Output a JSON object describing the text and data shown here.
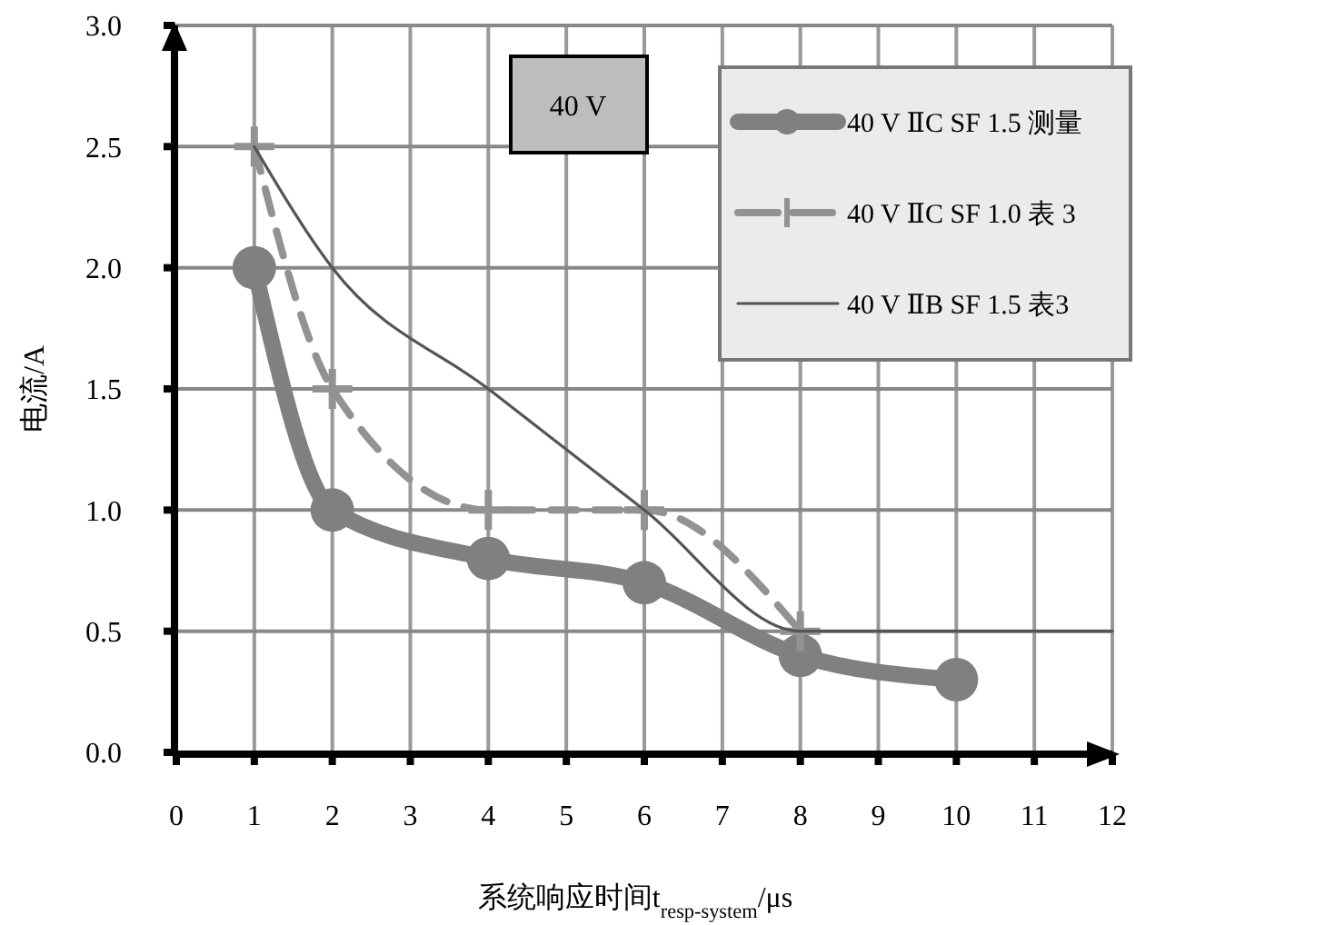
{
  "chart_data": {
    "type": "line",
    "xlabel": "系统响应时间t$_{resp-system}$/μs",
    "ylabel": "电流/A",
    "annotations": [
      "40 V"
    ],
    "xlim": [
      0,
      12
    ],
    "xticks": [
      0,
      1,
      2,
      3,
      4,
      5,
      6,
      7,
      8,
      9,
      10,
      11,
      12
    ],
    "ylim": [
      0,
      3
    ],
    "yticks": [
      {
        "value": 0,
        "label": "0.0"
      },
      {
        "value": 0.5,
        "label": "0.5"
      },
      {
        "value": 1,
        "label": "1.0"
      },
      {
        "value": 1.5,
        "label": "1.5"
      },
      {
        "value": 2,
        "label": "2.0"
      },
      {
        "value": 2.5,
        "label": "2.5"
      },
      {
        "value": 3,
        "label": "3.0"
      }
    ],
    "grid": true,
    "legend": "top right",
    "series": [
      {
        "name": "40 V ⅡC SF 1.5 测量",
        "color": "#808080",
        "x": [
          1,
          2,
          4,
          6,
          8,
          10
        ],
        "values": [
          2.0,
          1.0,
          0.8,
          0.7,
          0.4,
          0.3
        ],
        "marker": "circle",
        "line_style": "solid"
      },
      {
        "name": "40 V ⅡC SF 1.0 表 3",
        "color": "#929292",
        "x": [
          1,
          2,
          4,
          6,
          8
        ],
        "values": [
          2.5,
          1.5,
          1.0,
          1.0,
          0.5
        ],
        "marker": "cross",
        "line_style": "dashed"
      },
      {
        "name": "40 V ⅡB SF 1.5 表3",
        "color": "#555555",
        "x": [
          1,
          2,
          4,
          6,
          8,
          12
        ],
        "values": [
          2.5,
          2.0,
          1.5,
          1.0,
          0.5,
          0.5
        ],
        "marker": "none",
        "line_style": "solid"
      }
    ]
  }
}
